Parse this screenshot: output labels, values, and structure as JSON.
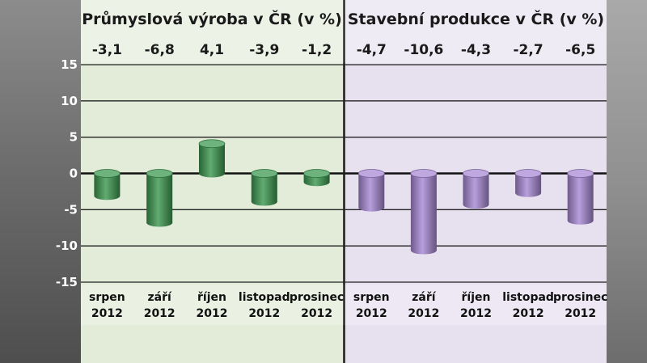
{
  "chart_data": {
    "type": "bar",
    "ylim": [
      -15,
      15
    ],
    "yticks": [
      15,
      10,
      5,
      0,
      -5,
      -10,
      -15
    ],
    "grid": true,
    "colors": {
      "left_bar": "#3e9a52",
      "right_bar": "#a98ad6",
      "left_panel": "#e3ecd9",
      "right_panel": "#e7e0ef"
    },
    "panels": [
      {
        "title": "Průmyslová výroba v ČR (v %)",
        "categories": [
          [
            "srpen",
            "2012"
          ],
          [
            "září",
            "2012"
          ],
          [
            "říjen",
            "2012"
          ],
          [
            "listopad",
            "2012"
          ],
          [
            "prosinec",
            "2012"
          ]
        ],
        "values": [
          -3.1,
          -6.8,
          4.1,
          -3.9,
          -1.2
        ],
        "value_labels": [
          "-3,1",
          "-6,8",
          "4,1",
          "-3,9",
          "-1,2"
        ]
      },
      {
        "title": "Stavební produkce v ČR (v %)",
        "categories": [
          [
            "srpen",
            "2012"
          ],
          [
            "září",
            "2012"
          ],
          [
            "říjen",
            "2012"
          ],
          [
            "listopad",
            "2012"
          ],
          [
            "prosinec",
            "2012"
          ]
        ],
        "values": [
          -4.7,
          -10.6,
          -4.3,
          -2.7,
          -6.5
        ],
        "value_labels": [
          "-4,7",
          "-10,6",
          "-4,3",
          "-2,7",
          "-6,5"
        ]
      }
    ]
  }
}
